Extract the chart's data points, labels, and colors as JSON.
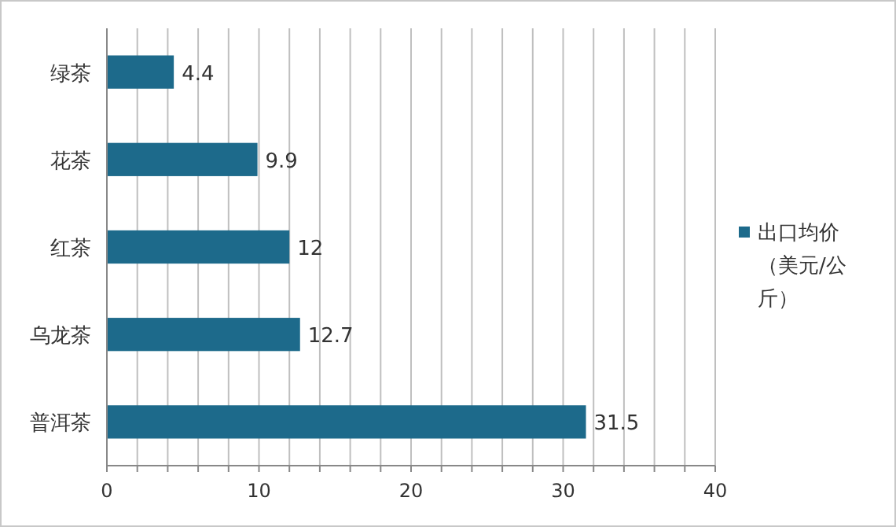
{
  "chart_data": {
    "type": "bar",
    "orientation": "horizontal",
    "categories": [
      "绿茶",
      "花茶",
      "红茶",
      "乌龙茶",
      "普洱茶"
    ],
    "series": [
      {
        "name": "出口均价（美元/公斤）",
        "color": "#1d6a8b",
        "values": [
          4.4,
          9.9,
          12,
          12.7,
          31.5
        ]
      }
    ],
    "xlim": [
      0,
      40
    ],
    "xticks": [
      0,
      {
        "value": 2,
        "label": null
      },
      {
        "value": 4,
        "label": null
      },
      {
        "value": 6,
        "label": null
      },
      {
        "value": 8,
        "label": null
      },
      10,
      {
        "value": 12,
        "label": null
      },
      {
        "value": 14,
        "label": null
      },
      {
        "value": 16,
        "label": null
      },
      {
        "value": 18,
        "label": null
      },
      20,
      {
        "value": 22,
        "label": null
      },
      {
        "value": 24,
        "label": null
      },
      {
        "value": 26,
        "label": null
      },
      {
        "value": 28,
        "label": null
      },
      30,
      {
        "value": 32,
        "label": null
      },
      {
        "value": 34,
        "label": null
      },
      {
        "value": 36,
        "label": null
      },
      {
        "value": 38,
        "label": null
      },
      40
    ],
    "grid": "x",
    "legend": "right",
    "data_labels": true
  }
}
